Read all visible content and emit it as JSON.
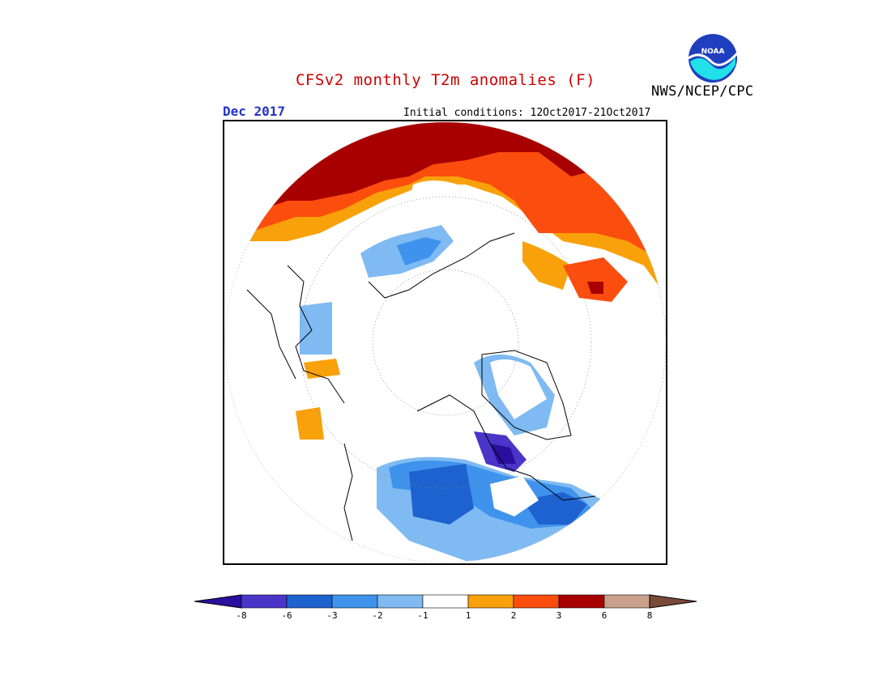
{
  "header": {
    "title": "CFSv2 monthly T2m anomalies (F)",
    "month": "Dec 2017",
    "initial_conditions": "Initial conditions: 12Oct2017-21Oct2017",
    "agency": "NWS/NCEP/CPC",
    "logo_text": "NOAA"
  },
  "colors": {
    "title": "#cc0000",
    "month": "#2233cc",
    "cat_m8": "#2a0f9e",
    "cat_m6": "#4b35c9",
    "cat_m3": "#1e62cf",
    "cat_m2": "#3f93ec",
    "cat_m1": "#7fbaf2",
    "cat_0": "#ffffff",
    "cat_p1": "#f8a10a",
    "cat_p2": "#fb4e0e",
    "cat_p3": "#a80000",
    "cat_p6": "#c9a08c",
    "cat_p8": "#7a4a3a"
  },
  "legend": {
    "ticks": [
      "-8",
      "-6",
      "-3",
      "-2",
      "-1",
      "1",
      "2",
      "3",
      "6",
      "8"
    ]
  }
}
